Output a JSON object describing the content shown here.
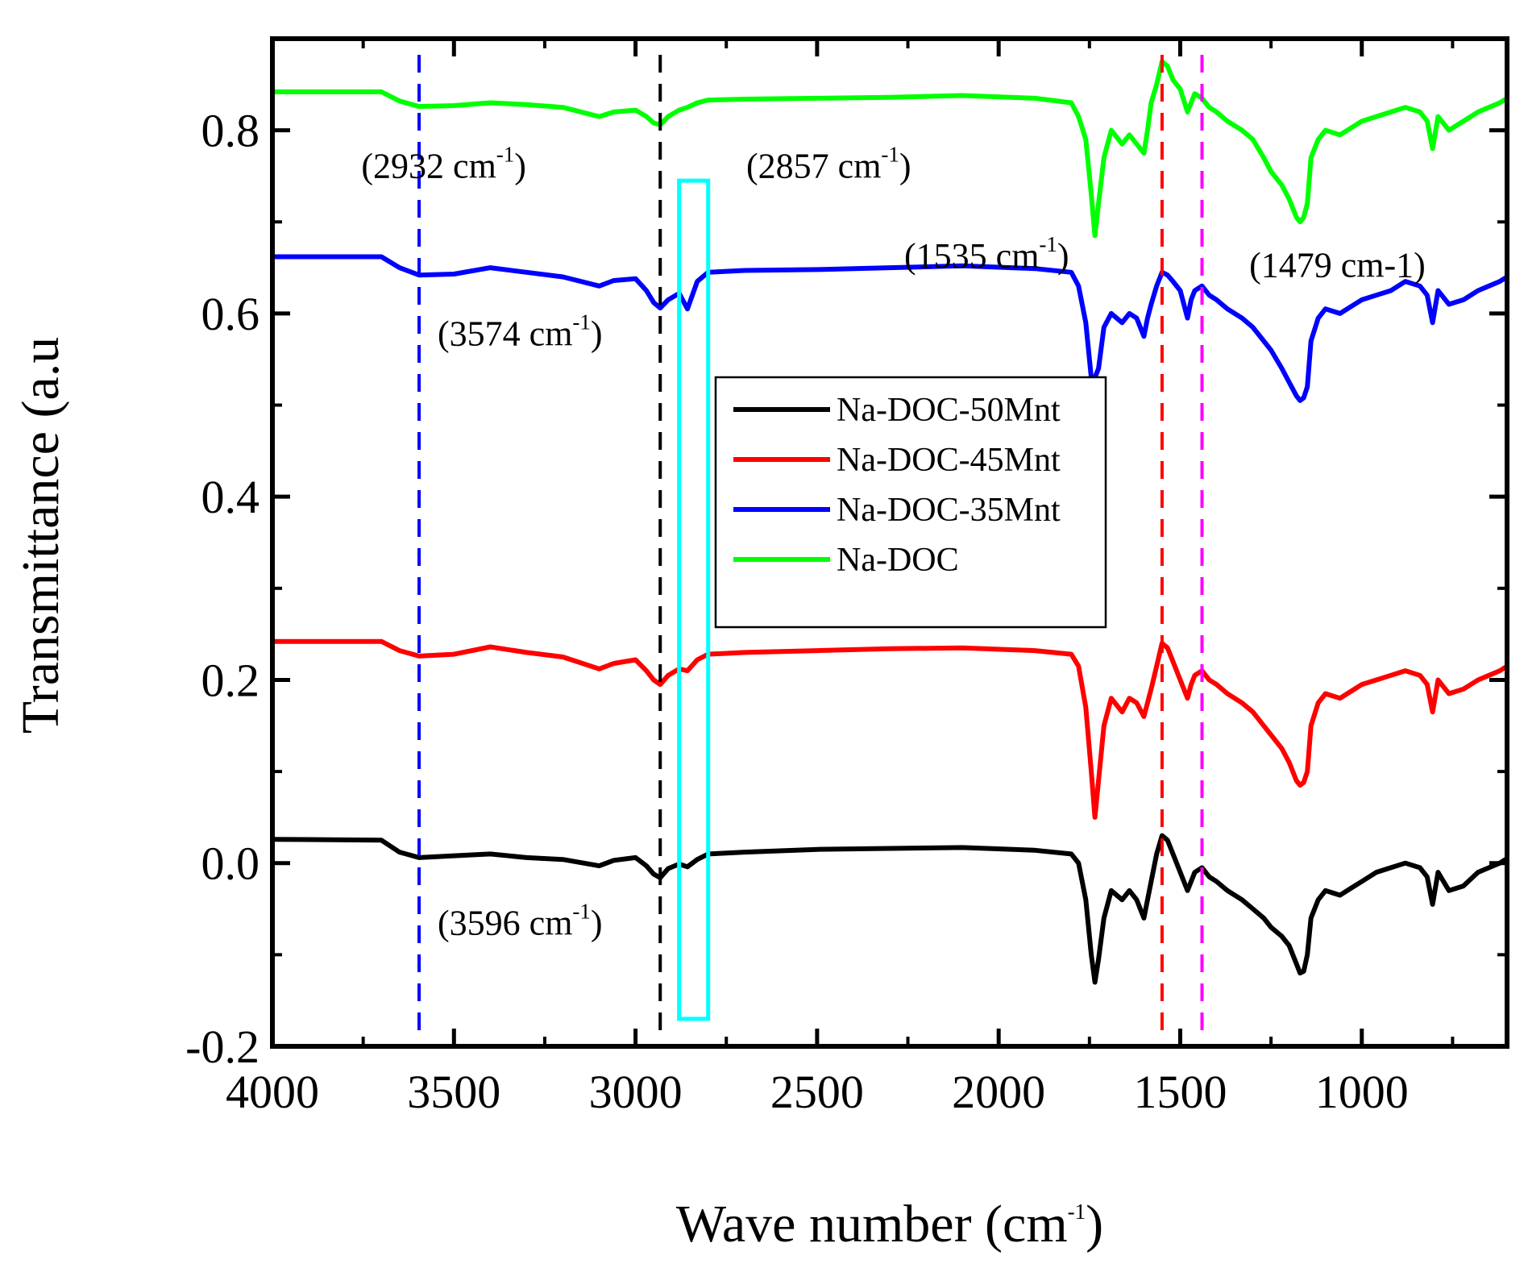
{
  "chart_data": {
    "type": "line",
    "title": "",
    "xlabel": "Wave number (cm",
    "xlabel_sup": "-1",
    "xlabel_tail": ")",
    "ylabel": "Transmittance (a.u",
    "xlim": [
      4000,
      600
    ],
    "ylim": [
      -0.2,
      0.9
    ],
    "x_reversed": true,
    "grid": false,
    "legend_placement": "center",
    "x_ticks": [
      4000,
      3500,
      3000,
      2500,
      2000,
      1500,
      1000
    ],
    "x_tick_labels": [
      "4000",
      "3500",
      "3000",
      "2500",
      "2000",
      "1500",
      "1000"
    ],
    "y_ticks": [
      -0.2,
      0.0,
      0.2,
      0.4,
      0.6,
      0.8
    ],
    "y_tick_labels": [
      "-0.2",
      "0.0",
      "0.2",
      "0.4",
      "0.6",
      "0.8"
    ],
    "series": [
      {
        "name": "Na-DOC-50Mnt",
        "color": "#000000",
        "x": [
          4000,
          3700,
          3650,
          3596,
          3500,
          3400,
          3300,
          3200,
          3100,
          3060,
          3000,
          2970,
          2950,
          2932,
          2910,
          2880,
          2857,
          2830,
          2800,
          2700,
          2500,
          2300,
          2100,
          1900,
          1800,
          1780,
          1760,
          1745,
          1735,
          1725,
          1710,
          1690,
          1660,
          1640,
          1620,
          1600,
          1590,
          1580,
          1565,
          1550,
          1535,
          1520,
          1500,
          1480,
          1470,
          1460,
          1440,
          1420,
          1400,
          1370,
          1330,
          1300,
          1270,
          1250,
          1220,
          1200,
          1180,
          1170,
          1160,
          1150,
          1140,
          1120,
          1100,
          1060,
          1020,
          1000,
          960,
          920,
          880,
          840,
          820,
          805,
          790,
          760,
          720,
          680,
          650,
          620,
          600
        ],
        "y": [
          0.026,
          0.025,
          0.012,
          0.006,
          0.008,
          0.01,
          0.006,
          0.004,
          -0.003,
          0.003,
          0.006,
          -0.003,
          -0.012,
          -0.016,
          -0.006,
          -0.001,
          -0.004,
          0.004,
          0.01,
          0.012,
          0.015,
          0.016,
          0.017,
          0.014,
          0.01,
          0.0,
          -0.04,
          -0.1,
          -0.13,
          -0.105,
          -0.06,
          -0.03,
          -0.04,
          -0.03,
          -0.04,
          -0.06,
          -0.04,
          -0.02,
          0.01,
          0.03,
          0.025,
          0.01,
          -0.01,
          -0.03,
          -0.02,
          -0.01,
          -0.005,
          -0.015,
          -0.02,
          -0.03,
          -0.04,
          -0.05,
          -0.06,
          -0.07,
          -0.08,
          -0.09,
          -0.11,
          -0.12,
          -0.118,
          -0.1,
          -0.06,
          -0.04,
          -0.03,
          -0.035,
          -0.025,
          -0.02,
          -0.01,
          -0.005,
          0.0,
          -0.005,
          -0.015,
          -0.045,
          -0.01,
          -0.03,
          -0.025,
          -0.01,
          -0.005,
          0.0,
          0.005
        ]
      },
      {
        "name": "Na-DOC-45Mnt",
        "color": "#ff0000",
        "x": [
          4000,
          3700,
          3650,
          3596,
          3500,
          3400,
          3300,
          3200,
          3100,
          3060,
          3000,
          2970,
          2950,
          2932,
          2910,
          2880,
          2857,
          2830,
          2800,
          2700,
          2500,
          2300,
          2100,
          1900,
          1800,
          1780,
          1760,
          1745,
          1735,
          1725,
          1710,
          1690,
          1660,
          1640,
          1620,
          1600,
          1590,
          1580,
          1565,
          1550,
          1535,
          1520,
          1500,
          1480,
          1470,
          1460,
          1440,
          1420,
          1400,
          1370,
          1330,
          1300,
          1270,
          1250,
          1220,
          1200,
          1180,
          1170,
          1160,
          1150,
          1140,
          1120,
          1100,
          1060,
          1020,
          1000,
          960,
          920,
          880,
          840,
          820,
          805,
          790,
          760,
          720,
          680,
          650,
          620,
          600
        ],
        "y": [
          0.242,
          0.242,
          0.232,
          0.226,
          0.228,
          0.236,
          0.23,
          0.225,
          0.212,
          0.218,
          0.222,
          0.21,
          0.2,
          0.195,
          0.205,
          0.212,
          0.21,
          0.222,
          0.228,
          0.23,
          0.232,
          0.234,
          0.235,
          0.232,
          0.228,
          0.215,
          0.17,
          0.1,
          0.05,
          0.09,
          0.15,
          0.18,
          0.165,
          0.18,
          0.175,
          0.16,
          0.175,
          0.19,
          0.215,
          0.24,
          0.235,
          0.22,
          0.2,
          0.18,
          0.195,
          0.205,
          0.21,
          0.2,
          0.195,
          0.185,
          0.175,
          0.165,
          0.15,
          0.14,
          0.125,
          0.11,
          0.09,
          0.085,
          0.088,
          0.1,
          0.15,
          0.175,
          0.185,
          0.18,
          0.19,
          0.195,
          0.2,
          0.205,
          0.21,
          0.205,
          0.195,
          0.165,
          0.2,
          0.185,
          0.19,
          0.2,
          0.205,
          0.21,
          0.215
        ]
      },
      {
        "name": "Na-DOC-35Mnt",
        "color": "#0000ff",
        "x": [
          4000,
          3700,
          3650,
          3596,
          3500,
          3400,
          3300,
          3200,
          3100,
          3060,
          3000,
          2970,
          2950,
          2932,
          2910,
          2880,
          2857,
          2830,
          2800,
          2700,
          2500,
          2300,
          2100,
          1900,
          1800,
          1780,
          1760,
          1745,
          1735,
          1725,
          1710,
          1690,
          1660,
          1640,
          1620,
          1600,
          1590,
          1580,
          1565,
          1550,
          1535,
          1520,
          1500,
          1480,
          1470,
          1460,
          1440,
          1420,
          1400,
          1370,
          1330,
          1300,
          1270,
          1250,
          1220,
          1200,
          1180,
          1170,
          1160,
          1150,
          1140,
          1120,
          1100,
          1060,
          1020,
          1000,
          960,
          920,
          880,
          840,
          820,
          805,
          790,
          760,
          720,
          680,
          650,
          620,
          600
        ],
        "y": [
          0.662,
          0.662,
          0.65,
          0.642,
          0.643,
          0.65,
          0.645,
          0.64,
          0.63,
          0.636,
          0.638,
          0.625,
          0.612,
          0.606,
          0.615,
          0.622,
          0.605,
          0.635,
          0.645,
          0.647,
          0.648,
          0.65,
          0.652,
          0.649,
          0.645,
          0.63,
          0.59,
          0.53,
          0.53,
          0.54,
          0.585,
          0.6,
          0.59,
          0.6,
          0.595,
          0.575,
          0.595,
          0.61,
          0.63,
          0.645,
          0.642,
          0.635,
          0.625,
          0.595,
          0.615,
          0.625,
          0.63,
          0.62,
          0.615,
          0.605,
          0.595,
          0.585,
          0.57,
          0.56,
          0.54,
          0.525,
          0.51,
          0.505,
          0.508,
          0.52,
          0.57,
          0.595,
          0.605,
          0.6,
          0.61,
          0.615,
          0.62,
          0.625,
          0.635,
          0.63,
          0.62,
          0.59,
          0.625,
          0.61,
          0.615,
          0.625,
          0.63,
          0.635,
          0.64
        ]
      },
      {
        "name": "Na-DOC",
        "color": "#00ff00",
        "x": [
          4000,
          3700,
          3650,
          3596,
          3500,
          3400,
          3300,
          3200,
          3100,
          3060,
          3000,
          2970,
          2950,
          2932,
          2910,
          2880,
          2857,
          2830,
          2800,
          2700,
          2500,
          2300,
          2100,
          1900,
          1800,
          1780,
          1760,
          1745,
          1735,
          1725,
          1710,
          1690,
          1660,
          1640,
          1620,
          1600,
          1590,
          1580,
          1565,
          1550,
          1535,
          1520,
          1500,
          1480,
          1470,
          1460,
          1440,
          1420,
          1400,
          1370,
          1330,
          1300,
          1270,
          1250,
          1220,
          1200,
          1180,
          1170,
          1160,
          1150,
          1140,
          1120,
          1100,
          1060,
          1020,
          1000,
          960,
          920,
          880,
          840,
          820,
          805,
          790,
          760,
          720,
          680,
          650,
          620,
          600
        ],
        "y": [
          0.842,
          0.842,
          0.832,
          0.826,
          0.827,
          0.83,
          0.828,
          0.825,
          0.815,
          0.82,
          0.822,
          0.815,
          0.808,
          0.806,
          0.815,
          0.822,
          0.825,
          0.83,
          0.833,
          0.834,
          0.835,
          0.836,
          0.838,
          0.835,
          0.83,
          0.815,
          0.79,
          0.73,
          0.685,
          0.72,
          0.77,
          0.8,
          0.785,
          0.795,
          0.785,
          0.775,
          0.8,
          0.83,
          0.85,
          0.875,
          0.87,
          0.855,
          0.845,
          0.82,
          0.83,
          0.84,
          0.835,
          0.825,
          0.82,
          0.81,
          0.8,
          0.79,
          0.77,
          0.755,
          0.74,
          0.725,
          0.705,
          0.7,
          0.705,
          0.72,
          0.77,
          0.79,
          0.8,
          0.795,
          0.805,
          0.81,
          0.815,
          0.82,
          0.825,
          0.82,
          0.81,
          0.78,
          0.815,
          0.8,
          0.81,
          0.82,
          0.825,
          0.83,
          0.835
        ]
      }
    ],
    "vertical_markers": [
      {
        "x": 3596,
        "color": "#0000ff"
      },
      {
        "x": 2932,
        "color": "#000000"
      },
      {
        "x": 1550,
        "color": "#ff0000"
      },
      {
        "x": 1440,
        "color": "#ff00ff"
      }
    ],
    "highlight_box": {
      "x0": 2880,
      "x1": 2800,
      "y0": -0.17,
      "y1": 0.745,
      "color": "#00ffff"
    },
    "annotations": [
      {
        "x": 3755,
        "y": 0.748,
        "label": "(2932 cm",
        "sup": "-1",
        "tail": ")",
        "anchor": "start"
      },
      {
        "x": 2695,
        "y": 0.748,
        "label": "(2857 cm",
        "sup": "-1",
        "tail": ")",
        "anchor": "start"
      },
      {
        "x": 2260,
        "y": 0.65,
        "label": "(1535 cm",
        "sup": "-1",
        "tail": ")",
        "anchor": "start"
      },
      {
        "x": 1310,
        "y": 0.64,
        "label": "(1479 cm-1)",
        "sup": "",
        "tail": "",
        "anchor": "start"
      },
      {
        "x": 3545,
        "y": 0.565,
        "label": "(3574 cm",
        "sup": "-1",
        "tail": ")",
        "anchor": "start"
      },
      {
        "x": 3545,
        "y": -0.078,
        "label": "(3596 cm",
        "sup": "-1",
        "tail": ")",
        "anchor": "start"
      }
    ]
  }
}
